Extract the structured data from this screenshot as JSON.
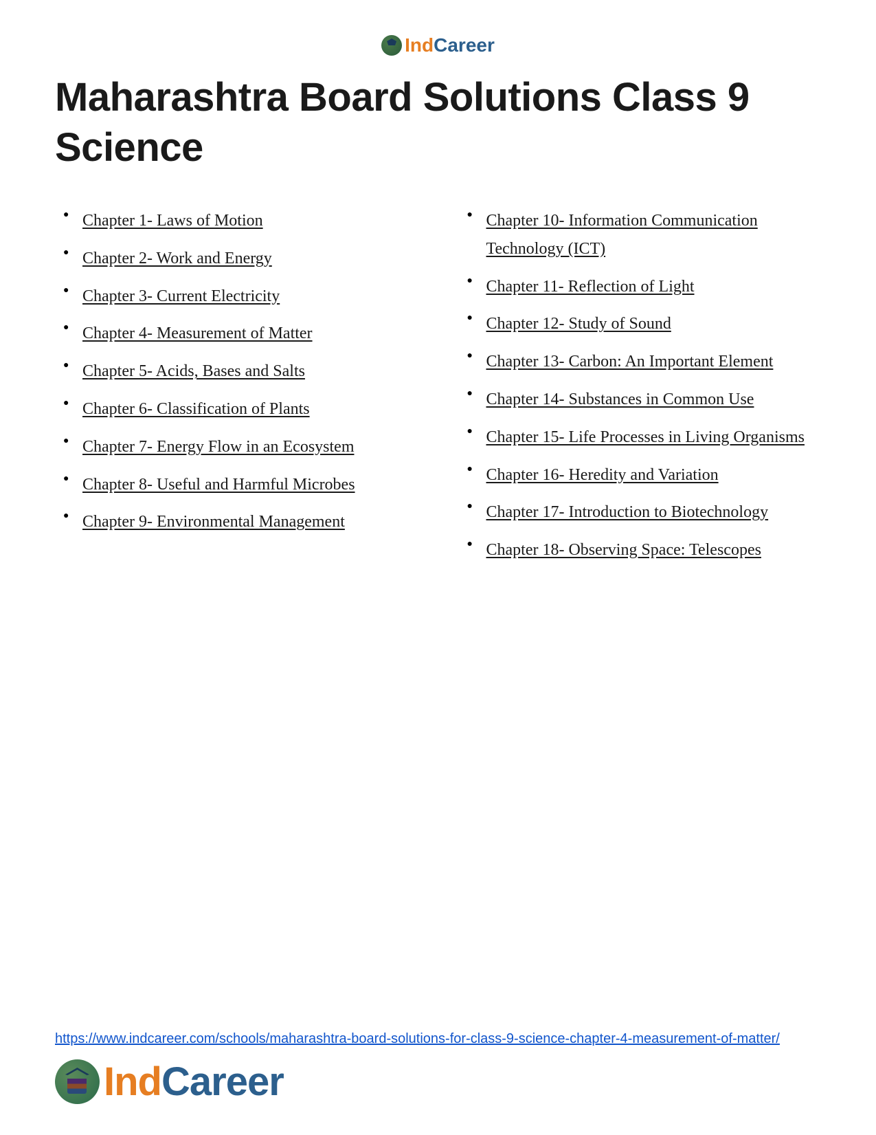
{
  "logo": {
    "part1": "Ind",
    "part2": "Career",
    "colors": {
      "part1": "#e67e22",
      "part2": "#2c5f8d",
      "icon_bg": "#2a6a4a"
    }
  },
  "title": "Maharashtra Board Solutions Class 9 Science",
  "chapters_left": [
    "Chapter 1- Laws of Motion",
    "Chapter 2- Work and Energy",
    "Chapter 3- Current Electricity",
    "Chapter 4- Measurement of Matter",
    "Chapter 5- Acids, Bases and Salts",
    "Chapter 6- Classification of Plants",
    "Chapter 7- Energy Flow in an Ecosystem",
    "Chapter 8- Useful and Harmful Microbes",
    "Chapter 9- Environmental Management"
  ],
  "chapters_right": [
    "Chapter 10- Information Communication Technology (ICT)",
    "Chapter 11- Reflection of Light",
    "Chapter 12- Study of Sound",
    "Chapter 13- Carbon: An Important Element",
    "Chapter 14- Substances in Common Use",
    "Chapter 15- Life Processes in Living Organisms",
    "Chapter 16- Heredity and Variation",
    "Chapter 17- Introduction to Biotechnology",
    "Chapter 18- Observing Space: Telescopes"
  ],
  "footer_url": "https://www.indcareer.com/schools/maharashtra-board-solutions-for-class-9-science-chapter-4-measurement-of-matter/"
}
